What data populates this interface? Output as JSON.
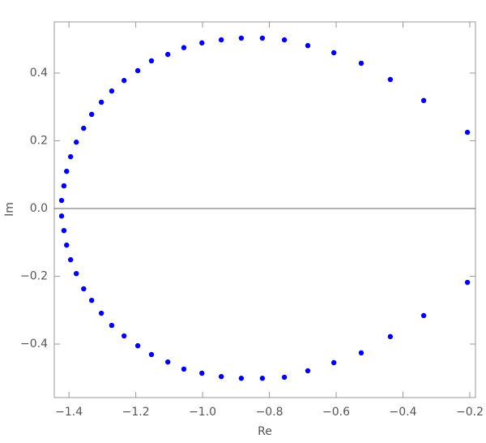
{
  "chart_data": {
    "type": "scatter",
    "xlabel": "Re",
    "ylabel": "Im",
    "color": "#0000ee",
    "x": [
      -0.207,
      -0.338,
      -0.438,
      -0.525,
      -0.607,
      -0.685,
      -0.755,
      -0.821,
      -0.884,
      -0.944,
      -1.002,
      -1.056,
      -1.104,
      -1.153,
      -1.194,
      -1.235,
      -1.272,
      -1.303,
      -1.332,
      -1.356,
      -1.378,
      -1.395,
      -1.407,
      -1.415,
      -1.422,
      -0.207,
      -0.338,
      -0.438,
      -0.525,
      -0.607,
      -0.685,
      -0.755,
      -0.821,
      -0.884,
      -0.944,
      -1.002,
      -1.056,
      -1.104,
      -1.153,
      -1.194,
      -1.235,
      -1.272,
      -1.303,
      -1.332,
      -1.356,
      -1.378,
      -1.395,
      -1.407,
      -1.415,
      -1.422
    ],
    "y": [
      0.225,
      0.319,
      0.381,
      0.429,
      0.46,
      0.481,
      0.498,
      0.503,
      0.503,
      0.498,
      0.489,
      0.475,
      0.455,
      0.436,
      0.407,
      0.378,
      0.347,
      0.314,
      0.278,
      0.237,
      0.196,
      0.153,
      0.11,
      0.067,
      0.024,
      -0.218,
      -0.316,
      -0.378,
      -0.426,
      -0.455,
      -0.479,
      -0.498,
      -0.501,
      -0.501,
      -0.496,
      -0.486,
      -0.474,
      -0.453,
      -0.431,
      -0.405,
      -0.376,
      -0.345,
      -0.309,
      -0.271,
      -0.237,
      -0.192,
      -0.151,
      -0.108,
      -0.065,
      -0.022
    ],
    "xlim": [
      -1.444,
      -0.183
    ],
    "ylim": [
      -0.558,
      0.551
    ],
    "xticks": [
      {
        "value": -1.4,
        "label": "−1.4"
      },
      {
        "value": -1.2,
        "label": "−1.2"
      },
      {
        "value": -1.0,
        "label": "−1.0"
      },
      {
        "value": -0.8,
        "label": "−0.8"
      },
      {
        "value": -0.6,
        "label": "−0.6"
      },
      {
        "value": -0.4,
        "label": "−0.4"
      },
      {
        "value": -0.2,
        "label": "−0.2"
      }
    ],
    "yticks": [
      {
        "value": -0.4,
        "label": "−0.4"
      },
      {
        "value": -0.2,
        "label": "−0.2"
      },
      {
        "value": 0,
        "label": "0.0"
      },
      0.2,
      0.4
    ],
    "zero_line": true
  }
}
